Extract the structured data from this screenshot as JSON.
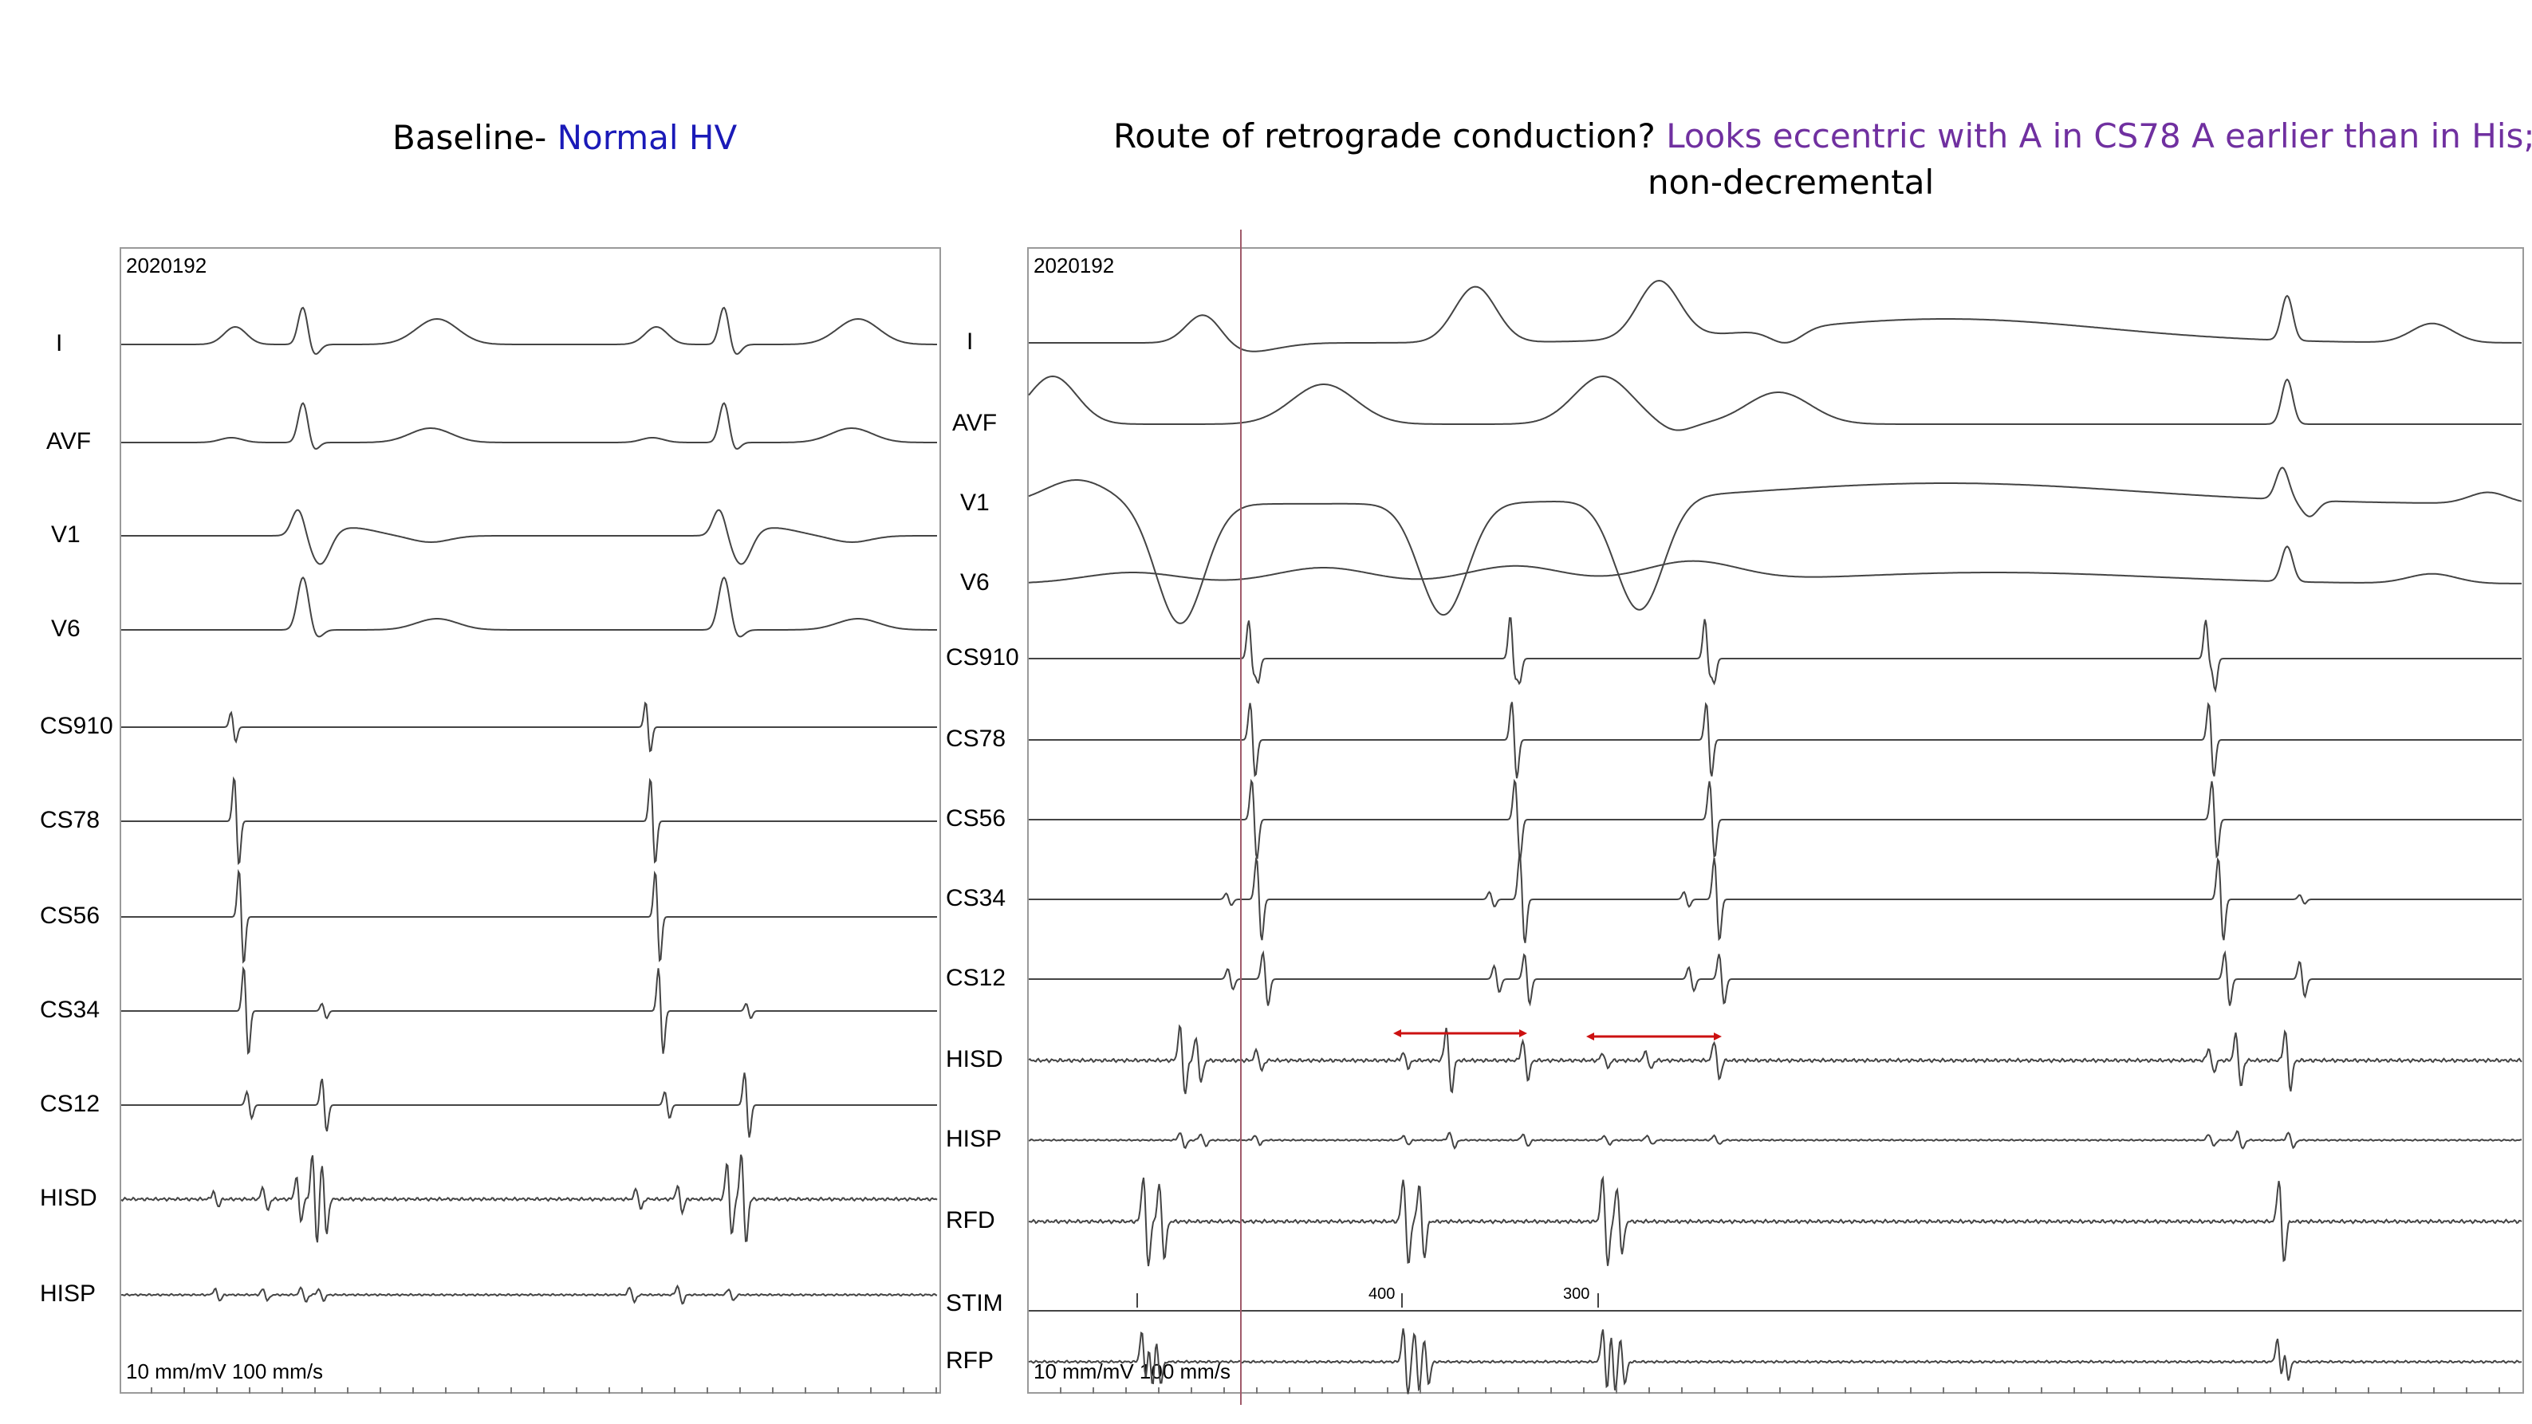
{
  "left_title": {
    "prefix": "Baseline- ",
    "highlight": "Normal HV"
  },
  "right_title": {
    "line1_black": "Route of retrograde conduction?",
    "line1_purple": "Looks eccentric with A  in CS78  A earlier than in His;",
    "line2": "non-decremental"
  },
  "left_panel": {
    "patient_id": "2020192",
    "scale": "10 mm/mV   100 mm/s",
    "channels": [
      "I",
      "AVF",
      "V1",
      "V6",
      "CS910",
      "CS78",
      "CS56",
      "CS34",
      "CS12",
      "HISD",
      "HISP"
    ]
  },
  "right_panel": {
    "patient_id": "2020192",
    "scale": "10 mm/mV   100 mm/s",
    "channels": [
      "I",
      "AVF",
      "V1",
      "V6",
      "CS910",
      "CS78",
      "CS56",
      "CS34",
      "CS12",
      "HISD",
      "HISP",
      "RFD",
      "STIM",
      "RFP"
    ],
    "stim_labels": [
      "400",
      "300"
    ]
  },
  "colors": {
    "highlight_blue": "#1a1ab8",
    "highlight_purple": "#7030a0",
    "arrow_red": "#cc1111",
    "cursor_line": "#a05a6a"
  }
}
